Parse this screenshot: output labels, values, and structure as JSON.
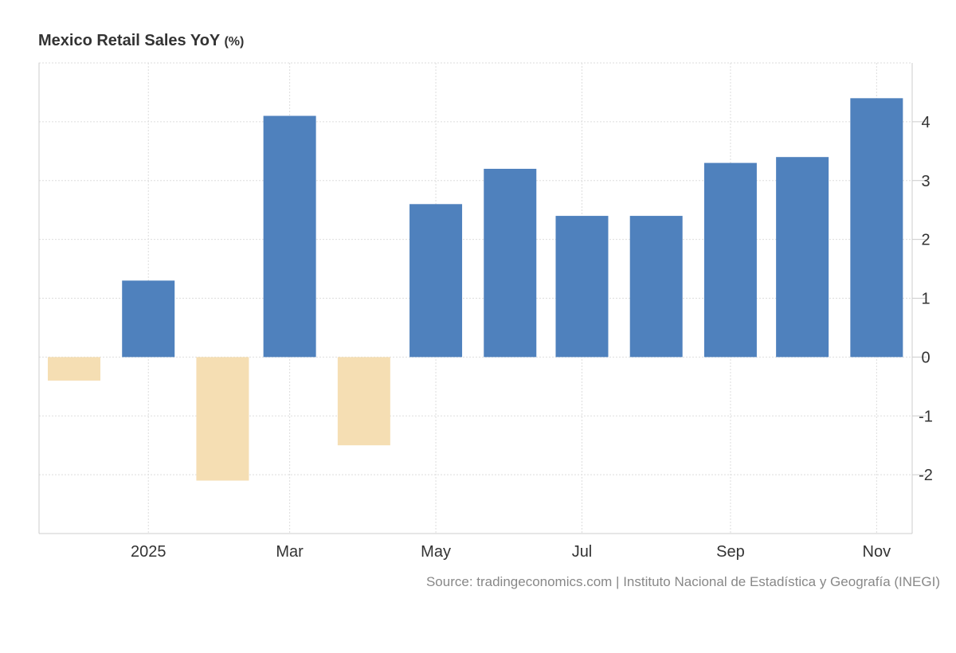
{
  "chart_data": {
    "type": "bar",
    "title": "Mexico Retail Sales YoY",
    "unit": "(%)",
    "categories": [
      "2024-12",
      "2025-01",
      "2025-02",
      "2025-03",
      "2025-04",
      "2025-05",
      "2025-06",
      "2025-07",
      "2025-08",
      "2025-09",
      "2025-10",
      "2025-11"
    ],
    "values": [
      -0.4,
      1.3,
      -2.1,
      4.1,
      -1.5,
      2.6,
      3.2,
      2.4,
      2.4,
      3.3,
      3.4,
      4.4
    ],
    "x_ticks": [
      {
        "date": "2025-01",
        "label": "2025"
      },
      {
        "date": "2025-03",
        "label": "Mar"
      },
      {
        "date": "2025-05",
        "label": "May"
      },
      {
        "date": "2025-07",
        "label": "Jul"
      },
      {
        "date": "2025-09",
        "label": "Sep"
      },
      {
        "date": "2025-11",
        "label": "Nov"
      }
    ],
    "y_ticks": [
      -2,
      -1,
      0,
      1,
      2,
      3,
      4
    ],
    "ylim": [
      -3,
      5
    ],
    "y_axis_side": "right",
    "grid": true,
    "colors": {
      "positive": "#4f81bd",
      "negative": "#f5deb3"
    }
  },
  "source": "Source: tradingeconomics.com | Instituto Nacional de Estadística y Geografía (INEGI)"
}
